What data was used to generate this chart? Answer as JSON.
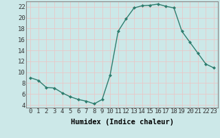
{
  "x": [
    0,
    1,
    2,
    3,
    4,
    5,
    6,
    7,
    8,
    9,
    10,
    11,
    12,
    13,
    14,
    15,
    16,
    17,
    18,
    19,
    20,
    21,
    22,
    23
  ],
  "y": [
    9,
    8.5,
    7.2,
    7.1,
    6.2,
    5.5,
    5.0,
    4.7,
    4.2,
    5.0,
    9.5,
    17.5,
    19.8,
    21.8,
    22.2,
    22.3,
    22.5,
    22.1,
    21.8,
    17.5,
    15.5,
    13.5,
    11.5,
    10.8
  ],
  "line_color": "#2e7d6e",
  "marker": "D",
  "marker_size": 2.0,
  "bg_color": "#cce8e8",
  "grid_color": "#e8c8c8",
  "xlabel": "Humidex (Indice chaleur)",
  "xlim": [
    -0.5,
    23.5
  ],
  "ylim": [
    3.5,
    23
  ],
  "yticks": [
    4,
    6,
    8,
    10,
    12,
    14,
    16,
    18,
    20,
    22
  ],
  "xticks": [
    0,
    1,
    2,
    3,
    4,
    5,
    6,
    7,
    8,
    9,
    10,
    11,
    12,
    13,
    14,
    15,
    16,
    17,
    18,
    19,
    20,
    21,
    22,
    23
  ],
  "xlabel_fontsize": 7.5,
  "tick_fontsize": 6.5,
  "linewidth": 1.0
}
